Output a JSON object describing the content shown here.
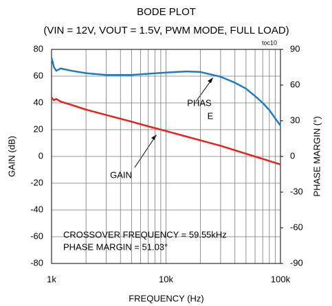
{
  "chart_data": {
    "type": "line",
    "title": "BODE PLOT",
    "subtitle": "(VIN = 12V, VOUT = 1.5V, PWM MODE, FULL LOAD)",
    "xlabel": "FREQUENCY (Hz)",
    "ylabel": "GAIN (dB)",
    "y2label": "PHASE MARGIN (°)",
    "log_x": true,
    "grid": true,
    "xlim": [
      1000,
      100000
    ],
    "xticks": [
      {
        "value": 1000,
        "label": "1k"
      },
      {
        "value": 10000,
        "label": "10k"
      },
      {
        "value": 100000,
        "label": "100k"
      }
    ],
    "x_minor_grid": [
      2000,
      3000,
      4000,
      5000,
      6000,
      7000,
      8000,
      9000,
      20000,
      30000,
      40000,
      50000,
      60000,
      70000,
      80000,
      90000
    ],
    "ylim": [
      -80,
      80
    ],
    "yticks": [
      80,
      60,
      40,
      20,
      0,
      -20,
      -40,
      -60,
      -80
    ],
    "y2lim": [
      -90,
      90
    ],
    "y2ticks": [
      90,
      60,
      30,
      0,
      -30,
      -60,
      -90
    ],
    "series": [
      {
        "name": "GAIN",
        "color": "#e8201c",
        "x": [
          1000,
          1050,
          1100,
          1200,
          1500,
          2000,
          3000,
          5000,
          7000,
          10000,
          20000,
          30000,
          50000,
          59550,
          70000,
          100000
        ],
        "values": [
          44,
          42,
          43,
          41,
          38.5,
          35,
          31,
          26,
          22.5,
          19,
          12,
          8,
          2,
          0,
          -1.8,
          -6
        ]
      },
      {
        "name": "PHASE",
        "color": "#1f7bc0",
        "axis": "y2",
        "x": [
          1000,
          1050,
          1100,
          1200,
          1500,
          2000,
          3000,
          5000,
          7000,
          10000,
          15000,
          20000,
          30000,
          40000,
          50000,
          59550,
          70000,
          80000,
          90000,
          100000
        ],
        "values": [
          83,
          75,
          72,
          74,
          72,
          70,
          68.5,
          68.5,
          69.5,
          70.5,
          71.5,
          71,
          67,
          62,
          57,
          51,
          45,
          39,
          32,
          26
        ]
      }
    ],
    "annotations": [
      "toc10",
      "PHAS",
      "E",
      "GAIN",
      "CROSSOVER FREQUENCY = 59.55kHz",
      "PHASE MARGIN = 51.03°"
    ]
  }
}
